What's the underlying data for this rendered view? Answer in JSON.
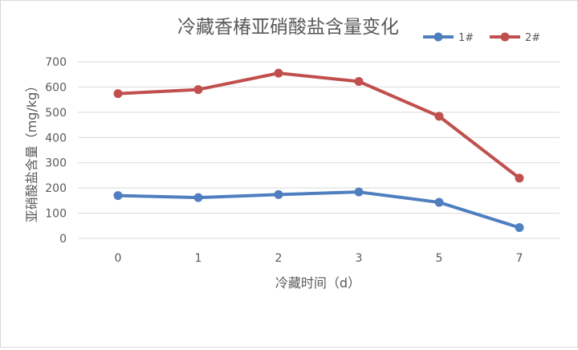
{
  "chart_data": {
    "type": "line",
    "title": "冷藏香椿亚硝酸盐含量变化",
    "xlabel": "冷藏时间（d）",
    "ylabel": "亚硝酸盐含量（mg/kg）",
    "categories": [
      "0",
      "1",
      "2",
      "3",
      "5",
      "7"
    ],
    "ylim": [
      0,
      700
    ],
    "yticks": [
      0,
      100,
      200,
      300,
      400,
      500,
      600,
      700
    ],
    "grid": true,
    "legend_position": "top-right",
    "series": [
      {
        "name": "1#",
        "color": "#4f7fbf",
        "values": [
          170,
          162,
          174,
          184,
          143,
          43
        ]
      },
      {
        "name": "2#",
        "color": "#c0504d",
        "values": [
          574,
          590,
          655,
          622,
          484,
          239
        ]
      }
    ]
  }
}
